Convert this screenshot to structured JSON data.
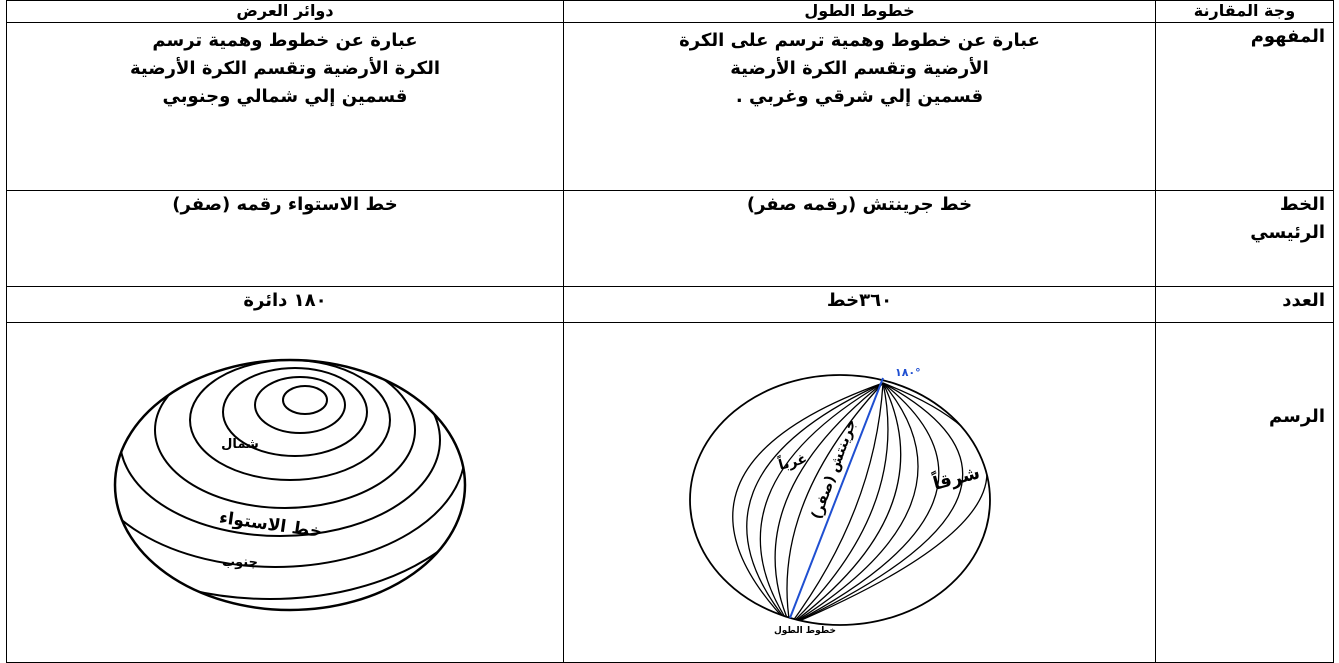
{
  "table": {
    "header": [
      "وجة المقارنة",
      "خطوط الطول",
      "دوائر العرض"
    ],
    "rows": [
      [
        [
          "المفهوم"
        ],
        [
          "عبارة عن خطوط وهمية ترسم على الكرة",
          "الأرضية وتقسم الكرة الأرضية",
          "قسمين إلي شرقي وغربي ."
        ],
        [
          "عبارة عن خطوط وهمية ترسم",
          "الكرة الأرضية وتقسم الكرة الأرضية",
          "قسمين إلي شمالي وجنوبي"
        ]
      ],
      [
        [
          "الخط",
          "الرئيسي"
        ],
        [
          "خط جرينتش (رقمه صفر)"
        ],
        [
          "خط الاستواء رقمه (صفر)"
        ]
      ],
      [
        [
          "العدد"
        ],
        [
          "٣٦٠خط"
        ],
        [
          "١٨٠ دائرة"
        ]
      ],
      [
        [
          "الرسم"
        ],
        [],
        []
      ]
    ]
  },
  "drawings": {
    "latitudes": {
      "labels": [
        "شمال",
        "خط الاستواء",
        "جنوب"
      ]
    },
    "longitudes": {
      "labels": [
        "غرباً",
        "شرقاً",
        "جرينتش (صفر)",
        "١٨٠°"
      ],
      "caption": "خطوط الطول"
    }
  }
}
